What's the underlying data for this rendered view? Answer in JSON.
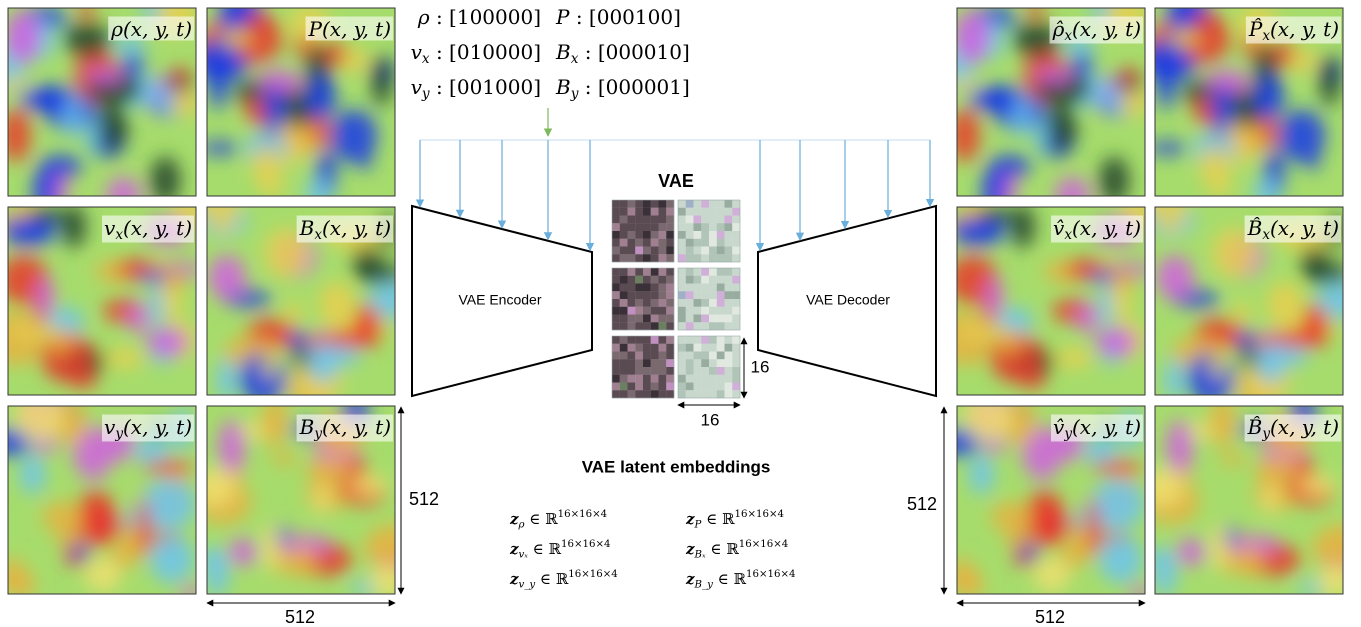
{
  "inputs": [
    {
      "base": "ρ",
      "args": "(x, y, t)"
    },
    {
      "base": "P",
      "args": "(x, y, t)"
    },
    {
      "base": "v",
      "sub": "x",
      "args": "(x, y, t)"
    },
    {
      "base": "B",
      "sub": "x",
      "args": "(x, y, t)"
    },
    {
      "base": "v",
      "sub": "y",
      "args": "(x, y, t)"
    },
    {
      "base": "B",
      "sub": "y",
      "args": "(x, y, t)"
    }
  ],
  "encoding": [
    {
      "base": "ρ",
      "code": " : [100000]"
    },
    {
      "base": "P",
      "code": " : [000100]"
    },
    {
      "base": "v",
      "sub": "x",
      "code": " : [010000]"
    },
    {
      "base": "B",
      "sub": "x",
      "code": " : [000010]"
    },
    {
      "base": "v",
      "sub": "y",
      "code": " : [001000]"
    },
    {
      "base": "B",
      "sub": "y",
      "code": " : [000001]"
    }
  ],
  "vae_title": "VAE",
  "encoder": "VAE Encoder",
  "decoder": "VAE Decoder",
  "latent_size": {
    "height": "16",
    "width": "16"
  },
  "latents_title": "VAE latent embeddings",
  "latents": [
    {
      "base": "z",
      "sub": "ρ",
      "rel": " ∈ ℝ",
      "sup": "16×16×4"
    },
    {
      "base": "z",
      "sub": "P",
      "rel": " ∈ ℝ",
      "sup": "16×16×4"
    },
    {
      "base": "z",
      "sub": "vₓ",
      "rel": " ∈ ℝ",
      "sup": "16×16×4"
    },
    {
      "base": "z",
      "sub": "Bₓ",
      "rel": " ∈ ℝ",
      "sup": "16×16×4"
    },
    {
      "base": "z",
      "sub": "v_y",
      "rel": " ∈ ℝ",
      "sup": "16×16×4"
    },
    {
      "base": "z",
      "sub": "B_y",
      "rel": " ∈ ℝ",
      "sup": "16×16×4"
    }
  ],
  "outputs": [
    {
      "base": "ρ̂",
      "sub": "x",
      "args": "(x, y, t)"
    },
    {
      "base": "P̂",
      "sub": "x",
      "args": "(x, y, t)"
    },
    {
      "base": "v̂",
      "sub": "x",
      "args": "(x, y, t)"
    },
    {
      "base": "B̂",
      "sub": "x",
      "args": "(x, y, t)"
    },
    {
      "base": "v̂",
      "sub": "y",
      "args": "(x, y, t)"
    },
    {
      "base": "B̂",
      "sub": "y",
      "args": "(x, y, t)"
    }
  ],
  "dims": {
    "input_height": "512",
    "input_width": "512",
    "output_height": "512",
    "output_width": "512"
  }
}
